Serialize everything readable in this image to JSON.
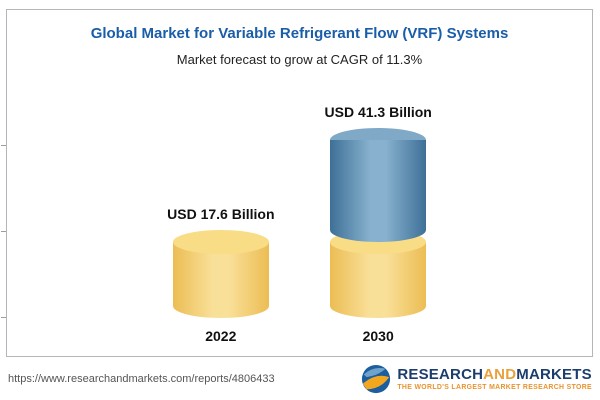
{
  "chart_data": {
    "type": "bar",
    "title": "Global Market for Variable Refrigerant Flow (VRF) Systems",
    "subtitle": "Market forecast to grow at CAGR of 11.3%",
    "categories": [
      "2022",
      "2030"
    ],
    "values": [
      17.6,
      41.3
    ],
    "unit": "USD Billion",
    "value_labels": [
      "USD 17.6 Billion",
      "USD 41.3 Billion"
    ],
    "cagr": "11.3%",
    "ylim": [
      0,
      45
    ],
    "grid": "off",
    "legend": "none",
    "colors": {
      "bar_2022": "#f7d77e",
      "bar_2030_base": "#f7d77e",
      "bar_2030_growth": "#4e84ab",
      "title_text": "#1a5da8"
    }
  },
  "footer": {
    "url": "https://www.researchandmarkets.com/reports/4806433",
    "logo": {
      "research": "RESEARCH",
      "and": "AND",
      "markets": "MARKETS",
      "tagline": "THE WORLD'S LARGEST MARKET RESEARCH STORE"
    }
  }
}
